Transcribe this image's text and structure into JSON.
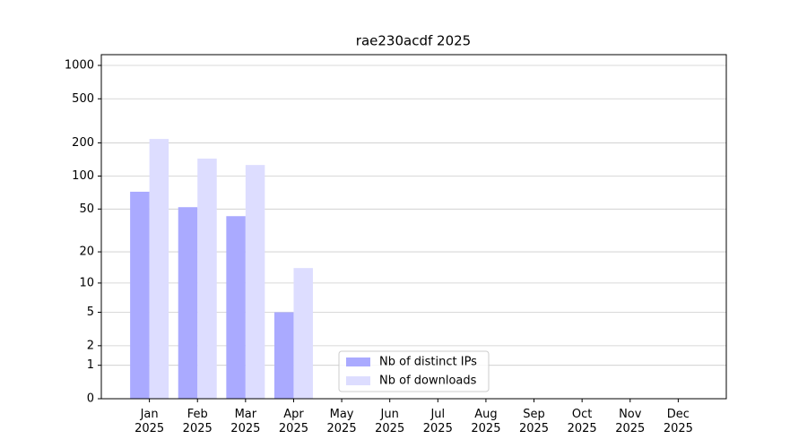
{
  "chart_data": {
    "type": "bar",
    "title": "rae230acdf 2025",
    "scale": "log1p",
    "categories": [
      "Jan\n2025",
      "Feb\n2025",
      "Mar\n2025",
      "Apr\n2025",
      "May\n2025",
      "Jun\n2025",
      "Jul\n2025",
      "Aug\n2025",
      "Sep\n2025",
      "Oct\n2025",
      "Nov\n2025",
      "Dec\n2025"
    ],
    "series": [
      {
        "name": "Nb of distinct IPs",
        "color": "#aaaaff",
        "values": [
          72,
          52,
          43,
          5,
          0,
          0,
          0,
          0,
          0,
          0,
          0,
          0
        ]
      },
      {
        "name": "Nb of downloads",
        "color": "#ddddff",
        "values": [
          217,
          144,
          126,
          14,
          0,
          0,
          0,
          0,
          0,
          0,
          0,
          0
        ]
      }
    ],
    "ylim": [
      0,
      1250
    ],
    "yticks": [
      0,
      1,
      2,
      5,
      10,
      20,
      50,
      100,
      200,
      500,
      1000
    ],
    "grid": true,
    "legend": "lower center"
  }
}
